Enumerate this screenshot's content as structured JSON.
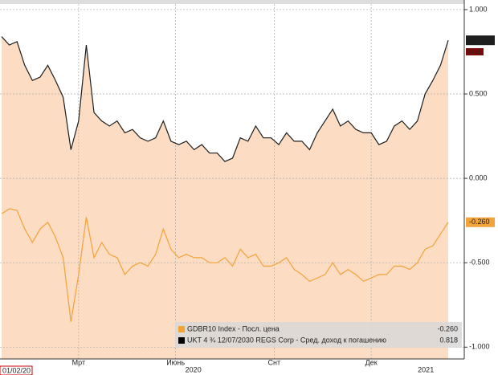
{
  "chart_data": {
    "type": "line",
    "start_label": "01/02/20",
    "series": [
      {
        "name": "UKT 4 ¾ 12/07/2030 REGS Corp - Сред. доход к погашению",
        "color": "#1e1e1e",
        "fill": "#fcdcc2",
        "last_value_label": "0.818",
        "values": [
          0.84,
          0.79,
          0.81,
          0.67,
          0.58,
          0.6,
          0.67,
          0.58,
          0.48,
          0.17,
          0.34,
          0.79,
          0.39,
          0.34,
          0.31,
          0.34,
          0.27,
          0.29,
          0.24,
          0.22,
          0.24,
          0.34,
          0.22,
          0.2,
          0.22,
          0.17,
          0.2,
          0.15,
          0.15,
          0.1,
          0.12,
          0.24,
          0.22,
          0.31,
          0.24,
          0.24,
          0.2,
          0.27,
          0.22,
          0.22,
          0.17,
          0.27,
          0.34,
          0.41,
          0.31,
          0.34,
          0.29,
          0.27,
          0.27,
          0.2,
          0.22,
          0.31,
          0.34,
          0.29,
          0.34,
          0.5,
          0.58,
          0.67,
          0.818
        ]
      },
      {
        "name": "GDBR10 Index - Посл. цена",
        "color": "#f2a33a",
        "last_value_label": "-0.260",
        "values": [
          -0.21,
          -0.18,
          -0.19,
          -0.3,
          -0.38,
          -0.3,
          -0.26,
          -0.35,
          -0.47,
          -0.85,
          -0.57,
          -0.23,
          -0.47,
          -0.38,
          -0.45,
          -0.47,
          -0.57,
          -0.52,
          -0.5,
          -0.52,
          -0.45,
          -0.3,
          -0.42,
          -0.47,
          -0.45,
          -0.47,
          -0.47,
          -0.5,
          -0.5,
          -0.47,
          -0.52,
          -0.42,
          -0.47,
          -0.45,
          -0.52,
          -0.52,
          -0.5,
          -0.47,
          -0.54,
          -0.57,
          -0.61,
          -0.59,
          -0.57,
          -0.5,
          -0.57,
          -0.54,
          -0.57,
          -0.61,
          -0.59,
          -0.57,
          -0.57,
          -0.52,
          -0.52,
          -0.54,
          -0.5,
          -0.42,
          -0.4,
          -0.33,
          -0.26
        ]
      }
    ],
    "annotations": [
      {
        "value": 0.781,
        "label": "0.781"
      }
    ],
    "ylim": [
      -1.07,
      1.033
    ],
    "yticks": [
      {
        "value": 1,
        "label": "1.000"
      },
      {
        "value": 0.5,
        "label": "0.500"
      },
      {
        "value": 0,
        "label": "0.000"
      },
      {
        "value": -0.5,
        "label": "-0.500"
      },
      {
        "value": -1,
        "label": "-1.000"
      }
    ],
    "xlim": [
      0,
      58
    ],
    "xticks": [
      {
        "value": 10,
        "label": "Мрт"
      },
      {
        "value": 22.6,
        "label": "Июнь"
      },
      {
        "value": 35.4,
        "label": "Снт"
      },
      {
        "value": 48,
        "label": "Дек"
      }
    ],
    "year_ticks": [
      {
        "value": 24.9,
        "label": "2020"
      },
      {
        "value": 55.1,
        "label": "2021"
      }
    ],
    "grid": true
  }
}
